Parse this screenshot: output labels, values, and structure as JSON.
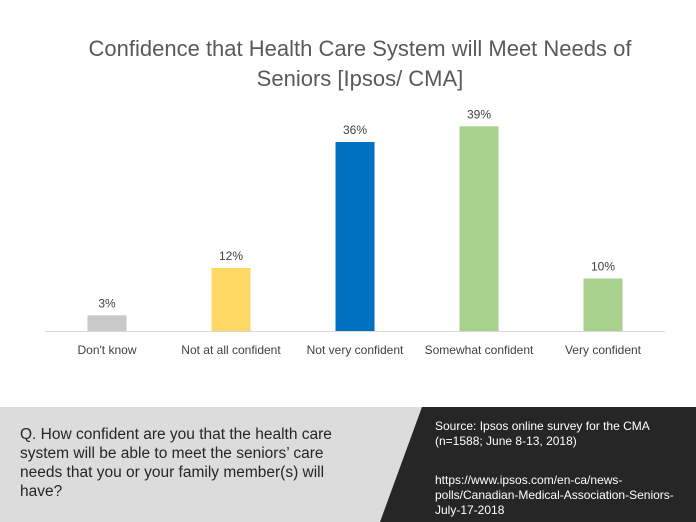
{
  "title": "Confidence that Health Care System will Meet Needs of Seniors [Ipsos/ CMA]",
  "question": "Q. How confident are you that the health care system will be able to meet the seniors’ care needs that you or your family member(s) will have?",
  "source": "Source:  Ipsos online survey for the CMA (n=1588; June 8-13, 2018)",
  "url": "https://www.ipsos.com/en-ca/news-polls/Canadian-Medical-Association-Seniors-July-17-2018",
  "chart_data": {
    "type": "bar",
    "title": "Confidence that Health Care System will Meet Needs of Seniors [Ipsos/ CMA]",
    "categories": [
      "Don't know",
      "Not at all confident",
      "Not very confident",
      "Somewhat confident",
      "Very confident"
    ],
    "values": [
      3,
      12,
      36,
      39,
      10
    ],
    "value_labels": [
      "3%",
      "12%",
      "36%",
      "39%",
      "10%"
    ],
    "colors": [
      "#c9c9c9",
      "#ffd966",
      "#0070c0",
      "#a9d18e",
      "#a9d18e"
    ],
    "axis_color": "#d9d9d9",
    "label_color": "#404040",
    "ylim": [
      0,
      40
    ],
    "grid": false,
    "legend": "none"
  }
}
